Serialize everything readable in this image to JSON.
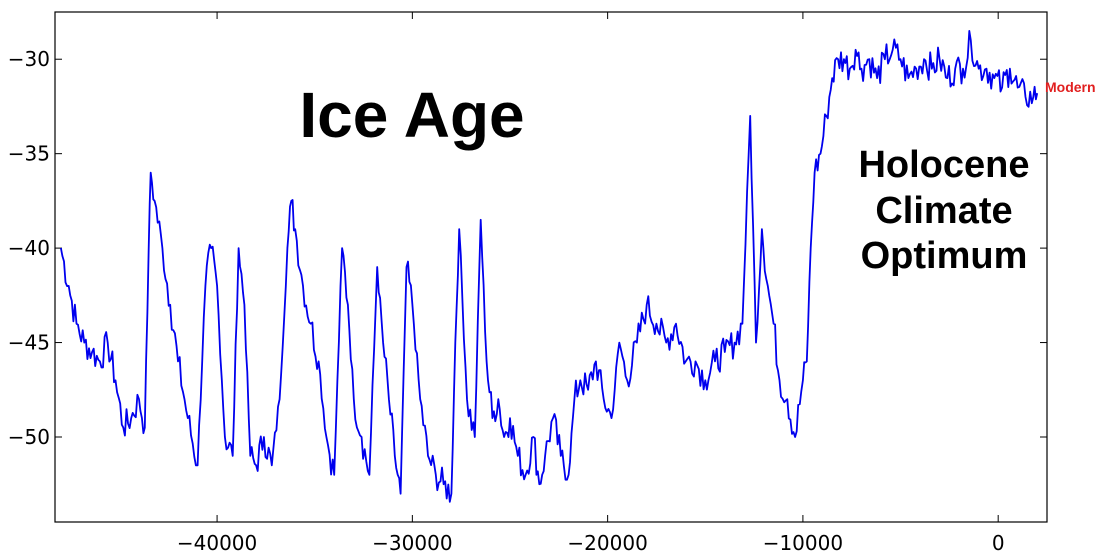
{
  "chart_data": {
    "type": "line",
    "title": "",
    "xlabel": "",
    "ylabel": "",
    "xlim": [
      -48300,
      2500
    ],
    "ylim": [
      -54.5,
      -27.5
    ],
    "grid": false,
    "x_ticks": [
      -40000,
      -30000,
      -20000,
      -10000,
      0
    ],
    "x_tick_labels": [
      "−40000",
      "−30000",
      "−20000",
      "−10000",
      "0"
    ],
    "y_ticks": [
      -30,
      -35,
      -40,
      -45,
      -50
    ],
    "y_tick_labels": [
      "−30",
      "−35",
      "−40",
      "−45",
      "−50"
    ],
    "line_color": "#0000ee",
    "annotations": {
      "ice_age": "Ice Age",
      "holocene": [
        "Holocene",
        "Climate",
        "Optimum"
      ],
      "modern": "Modern",
      "modern_color": "#e11f1f"
    },
    "series": [
      {
        "x": [
          -48000,
          -47600,
          -47200,
          -46800,
          -46400,
          -46000,
          -45600,
          -45200,
          -44800,
          -44400,
          -44000,
          -43700,
          -43500,
          -43400,
          -43200,
          -42800,
          -42400,
          -42000,
          -41500,
          -41000,
          -40600,
          -40300,
          -40000,
          -39600,
          -39200,
          -38900,
          -38600,
          -38300,
          -38000,
          -37600,
          -37200,
          -36800,
          -36400,
          -36200,
          -36000,
          -35600,
          -35200,
          -34800,
          -34400,
          -34000,
          -33600,
          -33300,
          -33000,
          -32600,
          -32200,
          -31800,
          -31500,
          -31200,
          -30900,
          -30600,
          -30300,
          -30000,
          -29600,
          -29200,
          -28800,
          -28400,
          -28000,
          -27800,
          -27600,
          -27200,
          -26800,
          -26500,
          -26200,
          -25900,
          -25600,
          -25300,
          -25000,
          -24600,
          -24200,
          -23800,
          -23500,
          -23200,
          -22800,
          -22400,
          -22000,
          -21700,
          -21400,
          -21000,
          -20600,
          -20200,
          -19800,
          -19400,
          -19000,
          -18500,
          -18000,
          -17500,
          -17000,
          -16500,
          -16000,
          -15500,
          -15000,
          -14500,
          -14000,
          -13500,
          -13100,
          -12700,
          -12400,
          -12100,
          -11800,
          -11500,
          -11200,
          -10800,
          -10400,
          -10000,
          -9800,
          -9600,
          -9400,
          -9100,
          -8800,
          -8500,
          -8200,
          -7900,
          -7600,
          -7300,
          -7000,
          -6600,
          -6200,
          -5800,
          -5400,
          -5000,
          -4600,
          -4200,
          -3800,
          -3400,
          -3000,
          -2600,
          -2200,
          -1800,
          -1400,
          -1000,
          -600,
          -200,
          200,
          600,
          1000,
          1400,
          1800,
          2000
        ],
        "y": [
          -40,
          -42,
          -44,
          -45,
          -45.5,
          -46,
          -45,
          -47,
          -49.5,
          -49,
          -48,
          -49.5,
          -40,
          -36,
          -37.5,
          -40,
          -43,
          -46,
          -49,
          -51.5,
          -42,
          -40,
          -42,
          -50,
          -51,
          -40,
          -43,
          -51,
          -51.5,
          -50,
          -51.5,
          -48,
          -40,
          -37.5,
          -39,
          -42,
          -44,
          -46,
          -50,
          -52,
          -40,
          -43,
          -48,
          -50,
          -52,
          -41,
          -45,
          -48,
          -51,
          -53,
          -41,
          -43,
          -48,
          -51,
          -52,
          -52.5,
          -53,
          -45,
          -39,
          -48,
          -50,
          -38.5,
          -46,
          -49,
          -48,
          -50,
          -49,
          -51,
          -52,
          -50,
          -52.5,
          -51,
          -49,
          -51,
          -52,
          -48,
          -47,
          -47.5,
          -46,
          -48,
          -49,
          -45,
          -47,
          -45,
          -43,
          -44,
          -45,
          -44,
          -46,
          -46,
          -47,
          -46,
          -45.5,
          -45,
          -44,
          -33,
          -45,
          -39,
          -42,
          -44,
          -47,
          -48,
          -50,
          -47,
          -46,
          -40,
          -36,
          -35,
          -33,
          -31,
          -30,
          -30,
          -30.5,
          -29.5,
          -30.5,
          -30,
          -31,
          -30,
          -29.5,
          -30,
          -31,
          -30.5,
          -30,
          -30.5,
          -30,
          -31,
          -30.5,
          -30.5,
          -29,
          -30.5,
          -30.5,
          -31,
          -31.5,
          -30.5,
          -31.5,
          -32,
          -32,
          -31.8
        ]
      }
    ]
  }
}
